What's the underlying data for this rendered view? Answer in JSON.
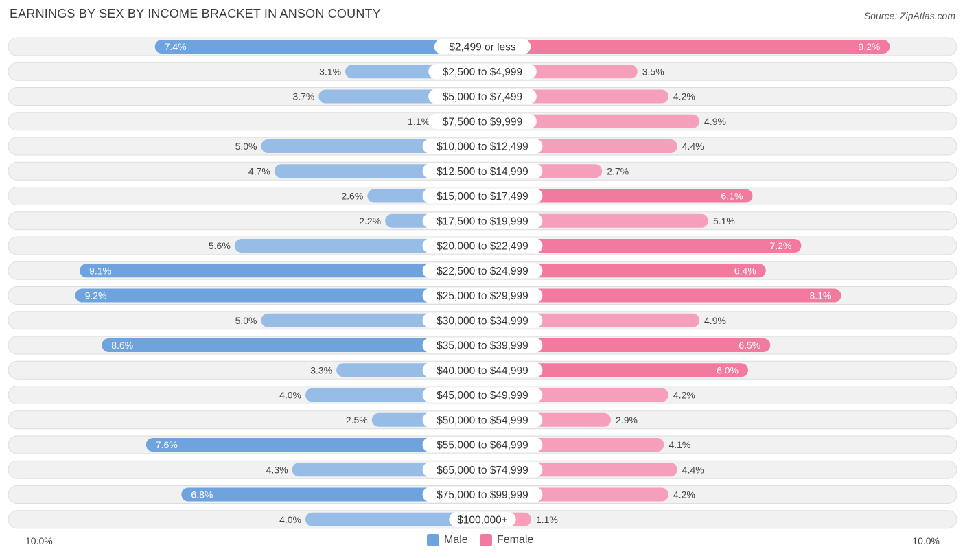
{
  "title": "EARNINGS BY SEX BY INCOME BRACKET IN ANSON COUNTY",
  "source": "Source: ZipAtlas.com",
  "colors": {
    "male": "#6fa3dd",
    "female": "#f27a9f",
    "track": "#f1f1f1",
    "track_border": "#dddddd"
  },
  "chart_data": {
    "type": "bar",
    "orientation": "horizontal-diverging",
    "title": "EARNINGS BY SEX BY INCOME BRACKET IN ANSON COUNTY",
    "categories": [
      "$2,499 or less",
      "$2,500 to $4,999",
      "$5,000 to $7,499",
      "$7,500 to $9,999",
      "$10,000 to $12,499",
      "$12,500 to $14,999",
      "$15,000 to $17,499",
      "$17,500 to $19,999",
      "$20,000 to $22,499",
      "$22,500 to $24,999",
      "$25,000 to $29,999",
      "$30,000 to $34,999",
      "$35,000 to $39,999",
      "$40,000 to $44,999",
      "$45,000 to $49,999",
      "$50,000 to $54,999",
      "$55,000 to $64,999",
      "$65,000 to $74,999",
      "$75,000 to $99,999",
      "$100,000+"
    ],
    "series": [
      {
        "name": "Male",
        "values": [
          7.4,
          3.1,
          3.7,
          1.1,
          5.0,
          4.7,
          2.6,
          2.2,
          5.6,
          9.1,
          9.2,
          5.0,
          8.6,
          3.3,
          4.0,
          2.5,
          7.6,
          4.3,
          6.8,
          4.0
        ],
        "labels": [
          "7.4%",
          "3.1%",
          "3.7%",
          "1.1%",
          "5.0%",
          "4.7%",
          "2.6%",
          "2.2%",
          "5.6%",
          "9.1%",
          "9.2%",
          "5.0%",
          "8.6%",
          "3.3%",
          "4.0%",
          "2.5%",
          "7.6%",
          "4.3%",
          "6.8%",
          "4.0%"
        ]
      },
      {
        "name": "Female",
        "values": [
          9.2,
          3.5,
          4.2,
          4.9,
          4.4,
          2.7,
          6.1,
          5.1,
          7.2,
          6.4,
          8.1,
          4.9,
          6.5,
          6.0,
          4.2,
          2.9,
          4.1,
          4.4,
          4.2,
          1.1
        ],
        "labels": [
          "9.2%",
          "3.5%",
          "4.2%",
          "4.9%",
          "4.4%",
          "2.7%",
          "6.1%",
          "5.1%",
          "7.2%",
          "6.4%",
          "8.1%",
          "4.9%",
          "6.5%",
          "6.0%",
          "4.2%",
          "2.9%",
          "4.1%",
          "4.4%",
          "4.2%",
          "1.1%"
        ]
      }
    ],
    "xlim": [
      0,
      10.0
    ],
    "axis_left_label": "10.0%",
    "axis_right_label": "10.0%",
    "legend": [
      "Male",
      "Female"
    ],
    "legend_position": "bottom-center"
  }
}
